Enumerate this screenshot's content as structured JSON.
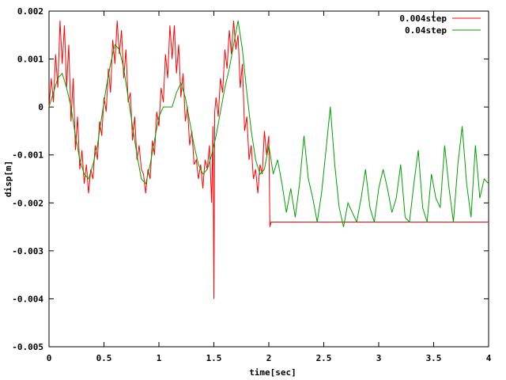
{
  "chart_data": {
    "type": "line",
    "title": "",
    "xlabel": "time[sec]",
    "ylabel": "disp[m]",
    "xlim": [
      0,
      4
    ],
    "ylim": [
      -0.005,
      0.002
    ],
    "x_ticks": [
      "0",
      "0.5",
      "1",
      "1.5",
      "2",
      "2.5",
      "3",
      "3.5",
      "4"
    ],
    "y_ticks": [
      "0.002",
      "0.001",
      "0",
      "-0.001",
      "-0.002",
      "-0.003",
      "-0.004",
      "-0.005"
    ],
    "grid": false,
    "legend_position": "top-right",
    "series": [
      {
        "name": "0.004step",
        "color": "#ff0000",
        "x": [
          0,
          0.02,
          0.04,
          0.06,
          0.08,
          0.1,
          0.12,
          0.14,
          0.16,
          0.18,
          0.2,
          0.22,
          0.24,
          0.26,
          0.28,
          0.3,
          0.32,
          0.34,
          0.36,
          0.38,
          0.4,
          0.42,
          0.44,
          0.46,
          0.48,
          0.5,
          0.52,
          0.54,
          0.56,
          0.58,
          0.6,
          0.62,
          0.64,
          0.66,
          0.68,
          0.7,
          0.72,
          0.74,
          0.76,
          0.78,
          0.8,
          0.82,
          0.84,
          0.86,
          0.88,
          0.9,
          0.92,
          0.94,
          0.96,
          0.98,
          1.0,
          1.02,
          1.04,
          1.06,
          1.08,
          1.1,
          1.12,
          1.14,
          1.16,
          1.18,
          1.2,
          1.22,
          1.24,
          1.26,
          1.28,
          1.3,
          1.32,
          1.34,
          1.36,
          1.38,
          1.4,
          1.42,
          1.44,
          1.46,
          1.48,
          1.492,
          1.5,
          1.508,
          1.52,
          1.54,
          1.56,
          1.58,
          1.6,
          1.62,
          1.64,
          1.66,
          1.68,
          1.7,
          1.72,
          1.74,
          1.76,
          1.78,
          1.8,
          1.82,
          1.84,
          1.86,
          1.88,
          1.9,
          1.92,
          1.94,
          1.96,
          1.98,
          2.0,
          2.01,
          2.02,
          2.5,
          3.0,
          3.5,
          4.0
        ],
        "values": [
          0.0,
          0.0006,
          0.0001,
          0.0011,
          0.0004,
          0.0018,
          0.0009,
          0.0017,
          0.0004,
          0.0013,
          -0.0003,
          0.0006,
          -0.0009,
          -0.0002,
          -0.0013,
          -0.0009,
          -0.0016,
          -0.0012,
          -0.0018,
          -0.0013,
          -0.0015,
          -0.0008,
          -0.0011,
          -0.0003,
          -0.0006,
          0.0002,
          -0.0001,
          0.0008,
          0.0003,
          0.0014,
          0.0009,
          0.0018,
          0.0011,
          0.0016,
          0.0006,
          0.0012,
          0.0001,
          0.0003,
          -0.0007,
          -0.0002,
          -0.0011,
          -0.0008,
          -0.0013,
          -0.0014,
          -0.0018,
          -0.0013,
          -0.0015,
          -0.0007,
          -0.001,
          -0.0001,
          -0.0004,
          0.0004,
          0.0001,
          0.0011,
          0.0006,
          0.0017,
          0.001,
          0.0017,
          0.0007,
          0.0013,
          0.0002,
          0.0007,
          -0.0003,
          0.0,
          -0.0008,
          -0.0005,
          -0.0012,
          -0.0011,
          -0.0015,
          -0.0012,
          -0.0017,
          -0.0011,
          -0.0013,
          -0.0008,
          -0.002,
          -0.0004,
          -0.004,
          -0.0001,
          0.0002,
          -0.0002,
          0.0006,
          0.0003,
          0.0012,
          0.0008,
          0.0016,
          0.0011,
          0.0018,
          0.0012,
          0.0015,
          0.0004,
          0.0009,
          -0.0005,
          -0.0002,
          -0.0011,
          -0.0008,
          -0.0015,
          -0.0013,
          -0.0018,
          -0.0012,
          -0.0014,
          -0.0005,
          -0.001,
          -0.0006,
          -0.0025,
          -0.0024,
          -0.0024,
          -0.0024,
          -0.0024,
          -0.0024
        ]
      },
      {
        "name": "0.04step",
        "color": "#00a000",
        "x": [
          0,
          0.04,
          0.08,
          0.12,
          0.16,
          0.2,
          0.24,
          0.28,
          0.32,
          0.36,
          0.4,
          0.44,
          0.48,
          0.52,
          0.56,
          0.6,
          0.64,
          0.68,
          0.72,
          0.76,
          0.8,
          0.84,
          0.88,
          0.92,
          0.96,
          1.0,
          1.04,
          1.08,
          1.12,
          1.16,
          1.2,
          1.24,
          1.28,
          1.32,
          1.36,
          1.4,
          1.44,
          1.48,
          1.52,
          1.56,
          1.6,
          1.64,
          1.68,
          1.72,
          1.76,
          1.8,
          1.84,
          1.88,
          1.92,
          1.96,
          2.0,
          2.04,
          2.08,
          2.12,
          2.16,
          2.2,
          2.24,
          2.28,
          2.32,
          2.36,
          2.4,
          2.44,
          2.48,
          2.52,
          2.56,
          2.6,
          2.64,
          2.68,
          2.72,
          2.76,
          2.8,
          2.84,
          2.88,
          2.92,
          2.96,
          3.0,
          3.04,
          3.08,
          3.12,
          3.16,
          3.2,
          3.24,
          3.28,
          3.32,
          3.36,
          3.4,
          3.44,
          3.48,
          3.52,
          3.56,
          3.6,
          3.64,
          3.68,
          3.72,
          3.76,
          3.8,
          3.84,
          3.88,
          3.92,
          3.96,
          4.0
        ],
        "values": [
          0.0,
          0.0003,
          0.0006,
          0.0007,
          0.0004,
          0.0,
          -0.0006,
          -0.0011,
          -0.0014,
          -0.0015,
          -0.0012,
          -0.0008,
          -0.0002,
          0.0004,
          0.0009,
          0.0013,
          0.0012,
          0.0008,
          0.0002,
          -0.0004,
          -0.001,
          -0.0015,
          -0.0016,
          -0.0012,
          -0.0007,
          -0.0002,
          0.0,
          0.0,
          0.0,
          0.0003,
          0.0005,
          0.0002,
          -0.0003,
          -0.0008,
          -0.0012,
          -0.0014,
          -0.0013,
          -0.001,
          -0.0006,
          -0.0001,
          0.0004,
          0.0008,
          0.0013,
          0.0018,
          0.0012,
          0.0003,
          -0.0005,
          -0.0011,
          -0.0014,
          -0.0013,
          -0.0008,
          -0.0014,
          -0.0011,
          -0.0016,
          -0.0022,
          -0.0017,
          -0.0023,
          -0.0016,
          -0.0006,
          -0.0015,
          -0.0019,
          -0.0024,
          -0.0018,
          -0.0009,
          0.0,
          -0.0012,
          -0.0021,
          -0.0025,
          -0.002,
          -0.0022,
          -0.0024,
          -0.0019,
          -0.0013,
          -0.0021,
          -0.0024,
          -0.0017,
          -0.0013,
          -0.0017,
          -0.0022,
          -0.0019,
          -0.0012,
          -0.0023,
          -0.0024,
          -0.0016,
          -0.0009,
          -0.0021,
          -0.0024,
          -0.0014,
          -0.0019,
          -0.0021,
          -0.0008,
          -0.0017,
          -0.0024,
          -0.0012,
          -0.0004,
          -0.0016,
          -0.0023,
          -0.0008,
          -0.0019,
          -0.0015,
          -0.0016
        ]
      }
    ]
  }
}
